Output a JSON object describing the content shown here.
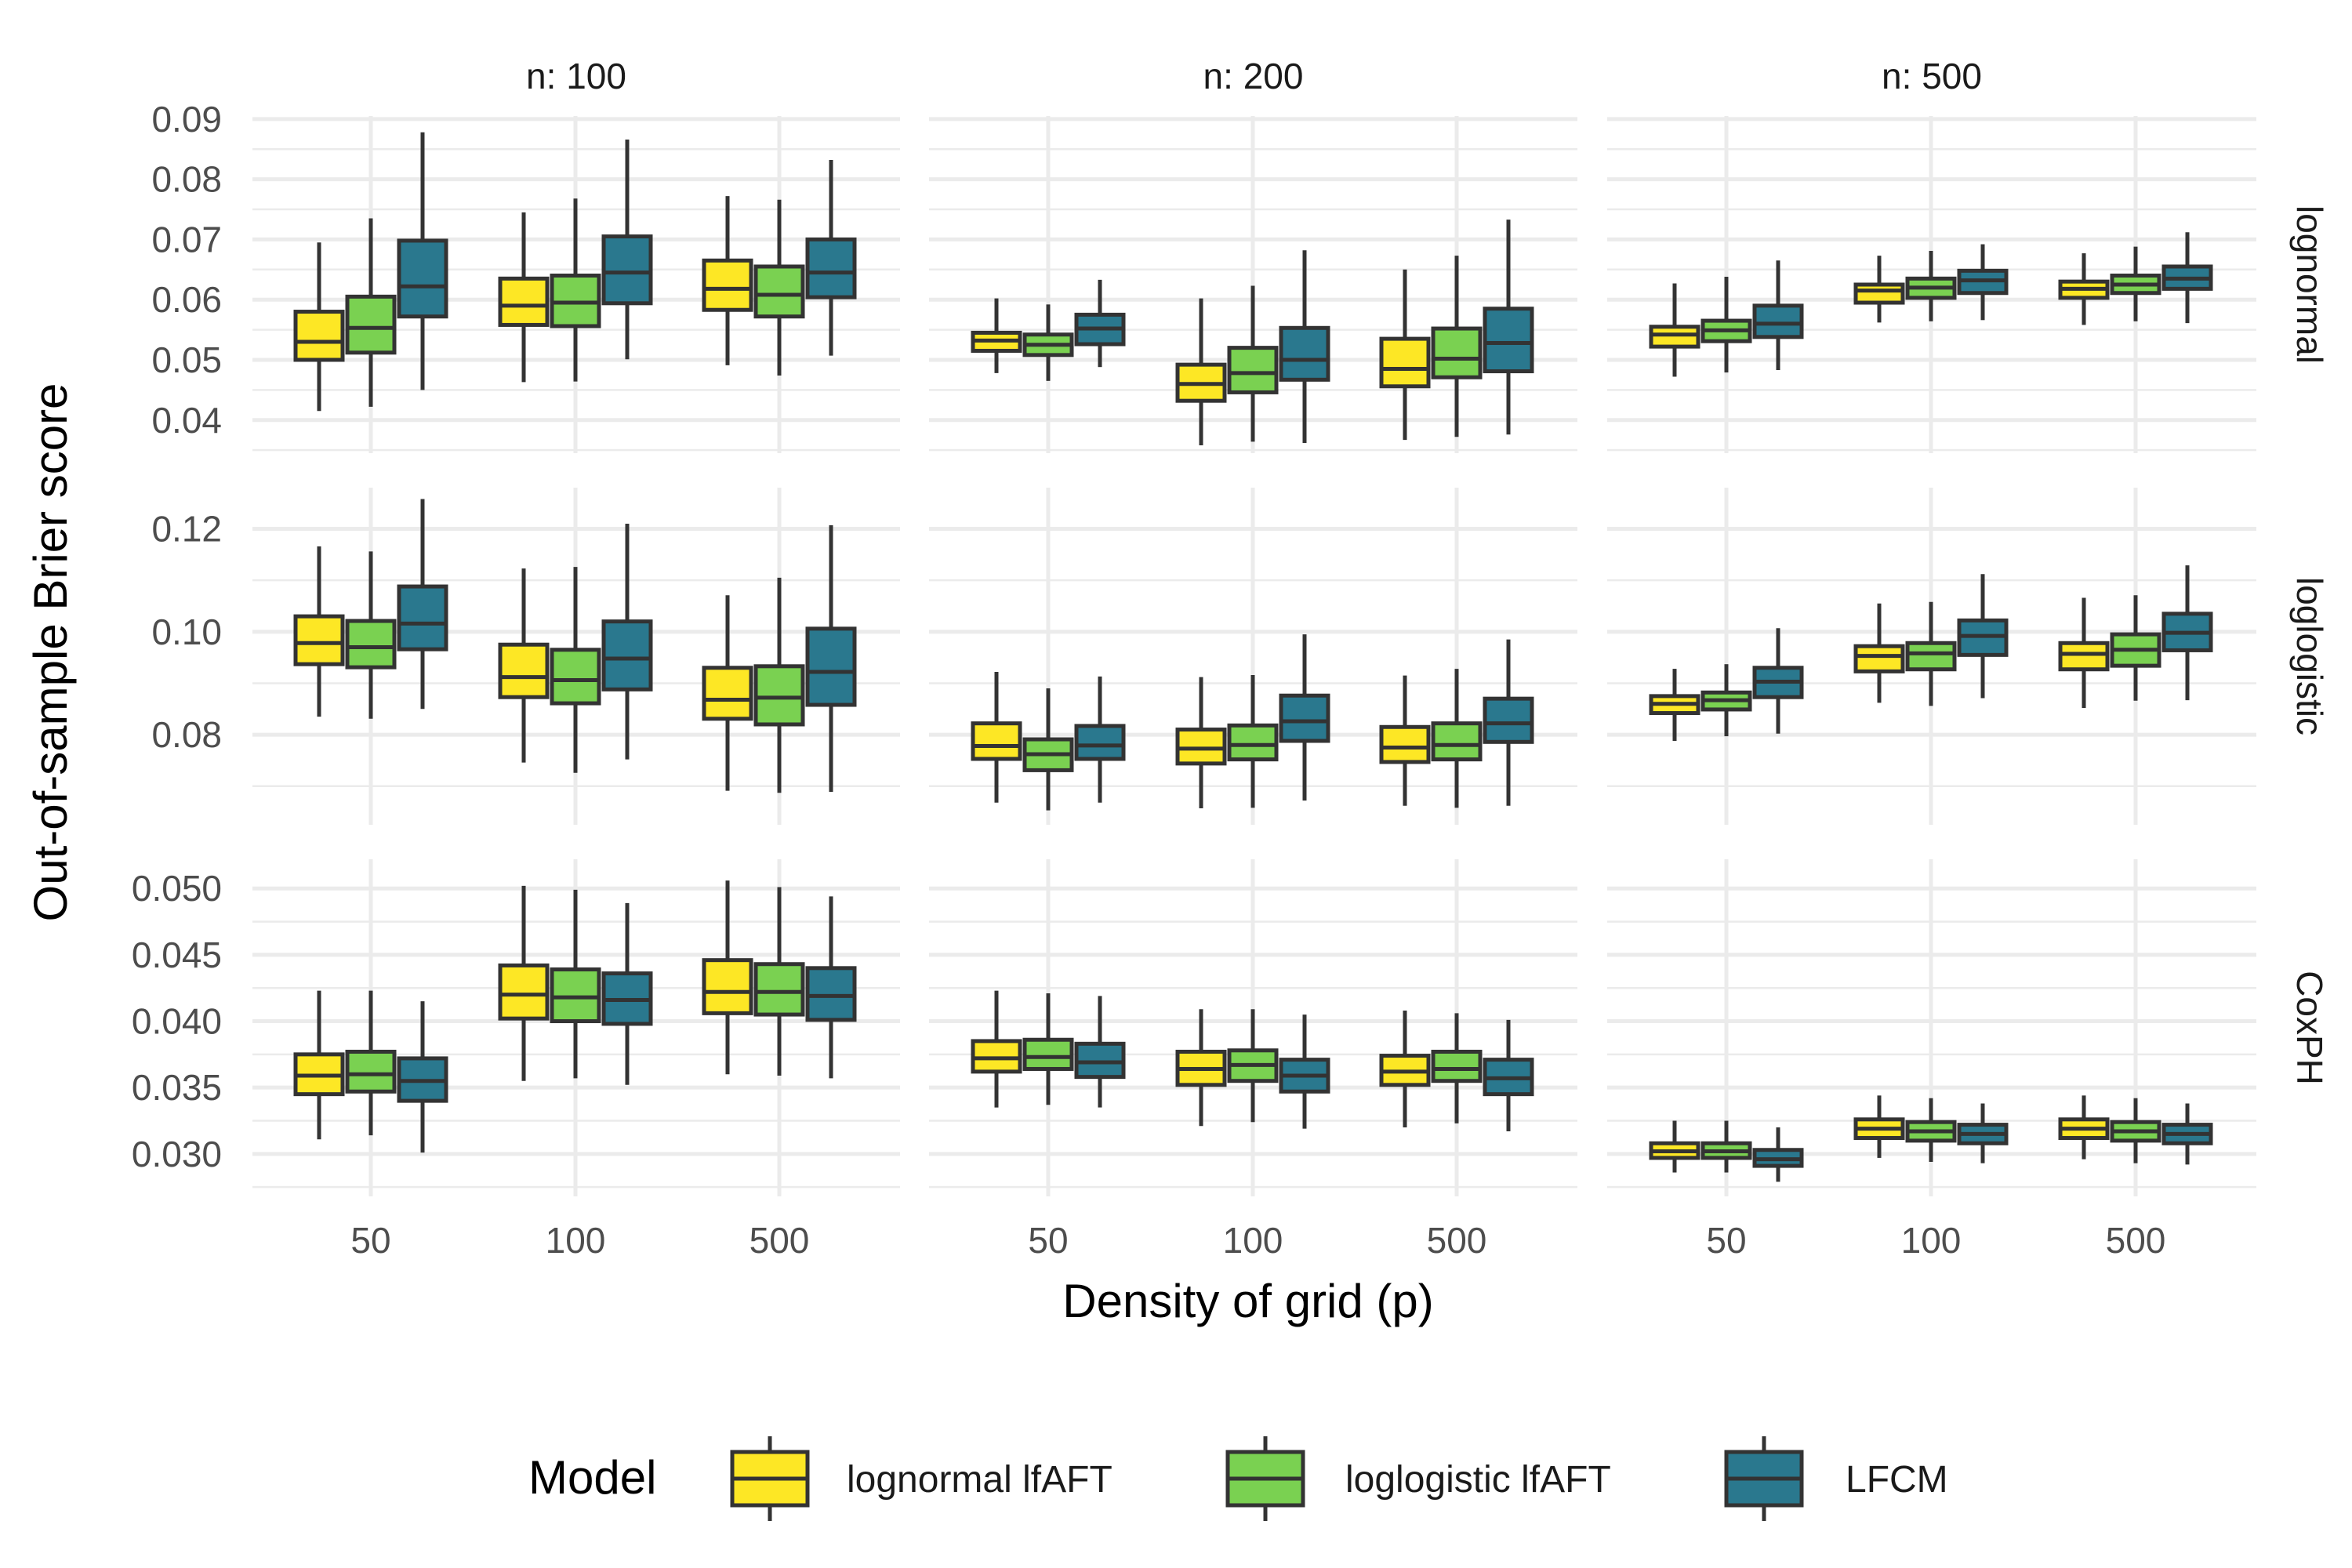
{
  "chart_data": {
    "type": "boxplot",
    "xlabel": "Density of grid (p)",
    "ylabel": "Out-of-sample Brier score",
    "col_facets": [
      "n: 100",
      "n: 200",
      "n: 500"
    ],
    "row_facets": [
      "lognormal",
      "loglogistic",
      "CoxPH"
    ],
    "categories": [
      "50",
      "100",
      "500"
    ],
    "legend": {
      "title": "Model",
      "position": "bottom",
      "entries": [
        {
          "name": "lognormal lfAFT",
          "color": "#FDE725"
        },
        {
          "name": "loglogistic lfAFT",
          "color": "#7AD151"
        },
        {
          "name": "LFCM",
          "color": "#2A788E"
        }
      ]
    },
    "rows": [
      {
        "name": "lognormal",
        "ylim": [
          0.0345,
          0.0905
        ],
        "yticks": [
          0.04,
          0.05,
          0.06,
          0.07,
          0.08,
          0.09
        ],
        "ytick_labels": [
          "0.04",
          "0.05",
          "0.06",
          "0.07",
          "0.08",
          "0.09"
        ],
        "panels": [
          {
            "col": "n: 100",
            "boxes": [
              [
                [
                  0.0415,
                  0.05,
                  0.053,
                  0.058,
                  0.0695
                ],
                [
                  0.0422,
                  0.0512,
                  0.0553,
                  0.0605,
                  0.0735
                ],
                [
                  0.045,
                  0.0572,
                  0.0622,
                  0.0698,
                  0.0878
                ]
              ],
              [
                [
                  0.0463,
                  0.0558,
                  0.059,
                  0.0635,
                  0.0745
                ],
                [
                  0.0464,
                  0.0556,
                  0.0595,
                  0.064,
                  0.0768
                ],
                [
                  0.0501,
                  0.0594,
                  0.0645,
                  0.0705,
                  0.0866
                ]
              ],
              [
                [
                  0.0491,
                  0.0583,
                  0.0618,
                  0.0665,
                  0.0772
                ],
                [
                  0.0474,
                  0.0572,
                  0.0608,
                  0.0655,
                  0.0766
                ],
                [
                  0.0507,
                  0.0604,
                  0.0645,
                  0.07,
                  0.0832
                ]
              ]
            ]
          },
          {
            "col": "n: 200",
            "boxes": [
              [
                [
                  0.0478,
                  0.0515,
                  0.0532,
                  0.0545,
                  0.0602
                ],
                [
                  0.0465,
                  0.0508,
                  0.0525,
                  0.0542,
                  0.0592
                ],
                [
                  0.0488,
                  0.0526,
                  0.0552,
                  0.0575,
                  0.0633
                ]
              ],
              [
                [
                  0.0358,
                  0.0432,
                  0.046,
                  0.0492,
                  0.0602
                ],
                [
                  0.0364,
                  0.0446,
                  0.0478,
                  0.052,
                  0.0623
                ],
                [
                  0.0362,
                  0.0467,
                  0.05,
                  0.0553,
                  0.0682
                ]
              ],
              [
                [
                  0.0367,
                  0.0456,
                  0.0485,
                  0.0535,
                  0.065
                ],
                [
                  0.0372,
                  0.0471,
                  0.0502,
                  0.0552,
                  0.0673
                ],
                [
                  0.0376,
                  0.0481,
                  0.0528,
                  0.0585,
                  0.0733
                ]
              ]
            ]
          },
          {
            "col": "n: 500",
            "boxes": [
              [
                [
                  0.0472,
                  0.0522,
                  0.0542,
                  0.0555,
                  0.0627
                ],
                [
                  0.0479,
                  0.0531,
                  0.0549,
                  0.0565,
                  0.0638
                ],
                [
                  0.0483,
                  0.0538,
                  0.056,
                  0.059,
                  0.0665
                ]
              ],
              [
                [
                  0.0562,
                  0.0595,
                  0.0615,
                  0.0625,
                  0.0673
                ],
                [
                  0.0564,
                  0.0603,
                  0.062,
                  0.0635,
                  0.0681
                ],
                [
                  0.0566,
                  0.0611,
                  0.0632,
                  0.0648,
                  0.0692
                ]
              ],
              [
                [
                  0.0558,
                  0.0603,
                  0.0618,
                  0.063,
                  0.0677
                ],
                [
                  0.0564,
                  0.0611,
                  0.0625,
                  0.064,
                  0.0688
                ],
                [
                  0.0561,
                  0.0618,
                  0.0635,
                  0.0655,
                  0.0712
                ]
              ]
            ]
          }
        ]
      },
      {
        "name": "loglogistic",
        "ylim": [
          0.0625,
          0.128
        ],
        "yticks": [
          0.08,
          0.1,
          0.12
        ],
        "ytick_labels": [
          "0.08",
          "0.10",
          "0.12"
        ],
        "panels": [
          {
            "col": "n: 100",
            "boxes": [
              [
                [
                  0.0835,
                  0.0937,
                  0.0978,
                  0.103,
                  0.1166
                ],
                [
                  0.0831,
                  0.0931,
                  0.097,
                  0.1021,
                  0.1156
                ],
                [
                  0.085,
                  0.0966,
                  0.1016,
                  0.1088,
                  0.1258
                ]
              ],
              [
                [
                  0.0746,
                  0.0873,
                  0.0912,
                  0.0975,
                  0.1123
                ],
                [
                  0.0726,
                  0.0861,
                  0.0906,
                  0.0965,
                  0.1126
                ],
                [
                  0.0752,
                  0.0888,
                  0.0948,
                  0.102,
                  0.121
                ]
              ],
              [
                [
                  0.0691,
                  0.0831,
                  0.0868,
                  0.093,
                  0.1071
                ],
                [
                  0.0687,
                  0.082,
                  0.0872,
                  0.0933,
                  0.1105
                ],
                [
                  0.0689,
                  0.0858,
                  0.0922,
                  0.1006,
                  0.1207
                ]
              ]
            ]
          },
          {
            "col": "n: 200",
            "boxes": [
              [
                [
                  0.0668,
                  0.0753,
                  0.0778,
                  0.0822,
                  0.0922
                ],
                [
                  0.0653,
                  0.0731,
                  0.0762,
                  0.0791,
                  0.089
                ],
                [
                  0.0668,
                  0.0753,
                  0.0779,
                  0.0817,
                  0.0913
                ]
              ],
              [
                [
                  0.0657,
                  0.0744,
                  0.0773,
                  0.081,
                  0.0912
                ],
                [
                  0.0658,
                  0.0752,
                  0.078,
                  0.0818,
                  0.0916
                ],
                [
                  0.0672,
                  0.0788,
                  0.0826,
                  0.0876,
                  0.0995
                ]
              ],
              [
                [
                  0.0662,
                  0.0747,
                  0.0775,
                  0.0815,
                  0.0915
                ],
                [
                  0.0658,
                  0.0752,
                  0.078,
                  0.0822,
                  0.0928
                ],
                [
                  0.0662,
                  0.0786,
                  0.0822,
                  0.087,
                  0.0985
                ]
              ]
            ]
          },
          {
            "col": "n: 500",
            "boxes": [
              [
                [
                  0.0788,
                  0.0842,
                  0.086,
                  0.0875,
                  0.0928
                ],
                [
                  0.0797,
                  0.0849,
                  0.0867,
                  0.0882,
                  0.0937
                ],
                [
                  0.0802,
                  0.0873,
                  0.0903,
                  0.093,
                  0.1007
                ]
              ],
              [
                [
                  0.0862,
                  0.0923,
                  0.0953,
                  0.0972,
                  0.1055
                ],
                [
                  0.0856,
                  0.0927,
                  0.0958,
                  0.0978,
                  0.1058
                ],
                [
                  0.0871,
                  0.0955,
                  0.0992,
                  0.1022,
                  0.1112
                ]
              ],
              [
                [
                  0.0852,
                  0.0927,
                  0.0957,
                  0.0978,
                  0.1066
                ],
                [
                  0.0866,
                  0.0934,
                  0.0965,
                  0.0995,
                  0.1071
                ],
                [
                  0.0867,
                  0.0964,
                  0.0998,
                  0.1035,
                  0.1129
                ]
              ]
            ]
          }
        ]
      },
      {
        "name": "CoxPH",
        "ylim": [
          0.0268,
          0.0522
        ],
        "yticks": [
          0.03,
          0.035,
          0.04,
          0.045,
          0.05
        ],
        "ytick_labels": [
          "0.030",
          "0.035",
          "0.040",
          "0.045",
          "0.050"
        ],
        "panels": [
          {
            "col": "n: 100",
            "boxes": [
              [
                [
                  0.0311,
                  0.0345,
                  0.0359,
                  0.0375,
                  0.0423
                ],
                [
                  0.0314,
                  0.0347,
                  0.036,
                  0.0377,
                  0.0423
                ],
                [
                  0.0301,
                  0.034,
                  0.0355,
                  0.0372,
                  0.0415
                ]
              ],
              [
                [
                  0.0355,
                  0.0402,
                  0.042,
                  0.0442,
                  0.0502
                ],
                [
                  0.0357,
                  0.04,
                  0.0418,
                  0.0439,
                  0.0499
                ],
                [
                  0.0352,
                  0.0398,
                  0.0416,
                  0.0436,
                  0.0489
                ]
              ],
              [
                [
                  0.036,
                  0.0406,
                  0.0422,
                  0.0446,
                  0.0506
                ],
                [
                  0.0359,
                  0.0405,
                  0.0422,
                  0.0443,
                  0.0501
                ],
                [
                  0.0357,
                  0.0401,
                  0.0419,
                  0.044,
                  0.0494
                ]
              ]
            ]
          },
          {
            "col": "n: 200",
            "boxes": [
              [
                [
                  0.0335,
                  0.0362,
                  0.0372,
                  0.0385,
                  0.0423
                ],
                [
                  0.0337,
                  0.0364,
                  0.0373,
                  0.0386,
                  0.0421
                ],
                [
                  0.0335,
                  0.0358,
                  0.0369,
                  0.0383,
                  0.0419
                ]
              ],
              [
                [
                  0.0321,
                  0.0352,
                  0.0364,
                  0.0377,
                  0.0409
                ],
                [
                  0.0324,
                  0.0355,
                  0.0367,
                  0.0378,
                  0.0409
                ],
                [
                  0.0319,
                  0.0347,
                  0.0359,
                  0.0371,
                  0.0405
                ]
              ],
              [
                [
                  0.032,
                  0.0352,
                  0.0362,
                  0.0374,
                  0.0408
                ],
                [
                  0.0323,
                  0.0355,
                  0.0364,
                  0.0377,
                  0.0406
                ],
                [
                  0.0317,
                  0.0345,
                  0.0357,
                  0.0371,
                  0.0401
                ]
              ]
            ]
          },
          {
            "col": "n: 500",
            "boxes": [
              [
                [
                  0.0286,
                  0.0297,
                  0.0302,
                  0.0308,
                  0.0325
                ],
                [
                  0.0286,
                  0.0297,
                  0.0302,
                  0.0308,
                  0.0325
                ],
                [
                  0.0279,
                  0.0291,
                  0.0296,
                  0.0303,
                  0.032
                ]
              ],
              [
                [
                  0.0297,
                  0.0312,
                  0.0319,
                  0.0326,
                  0.0344
                ],
                [
                  0.0294,
                  0.031,
                  0.0317,
                  0.0324,
                  0.0342
                ],
                [
                  0.0293,
                  0.0308,
                  0.0315,
                  0.0322,
                  0.0338
                ]
              ],
              [
                [
                  0.0296,
                  0.0312,
                  0.0319,
                  0.0326,
                  0.0344
                ],
                [
                  0.0293,
                  0.031,
                  0.0317,
                  0.0324,
                  0.0342
                ],
                [
                  0.0292,
                  0.0308,
                  0.0315,
                  0.0322,
                  0.0338
                ]
              ]
            ]
          }
        ]
      }
    ]
  }
}
